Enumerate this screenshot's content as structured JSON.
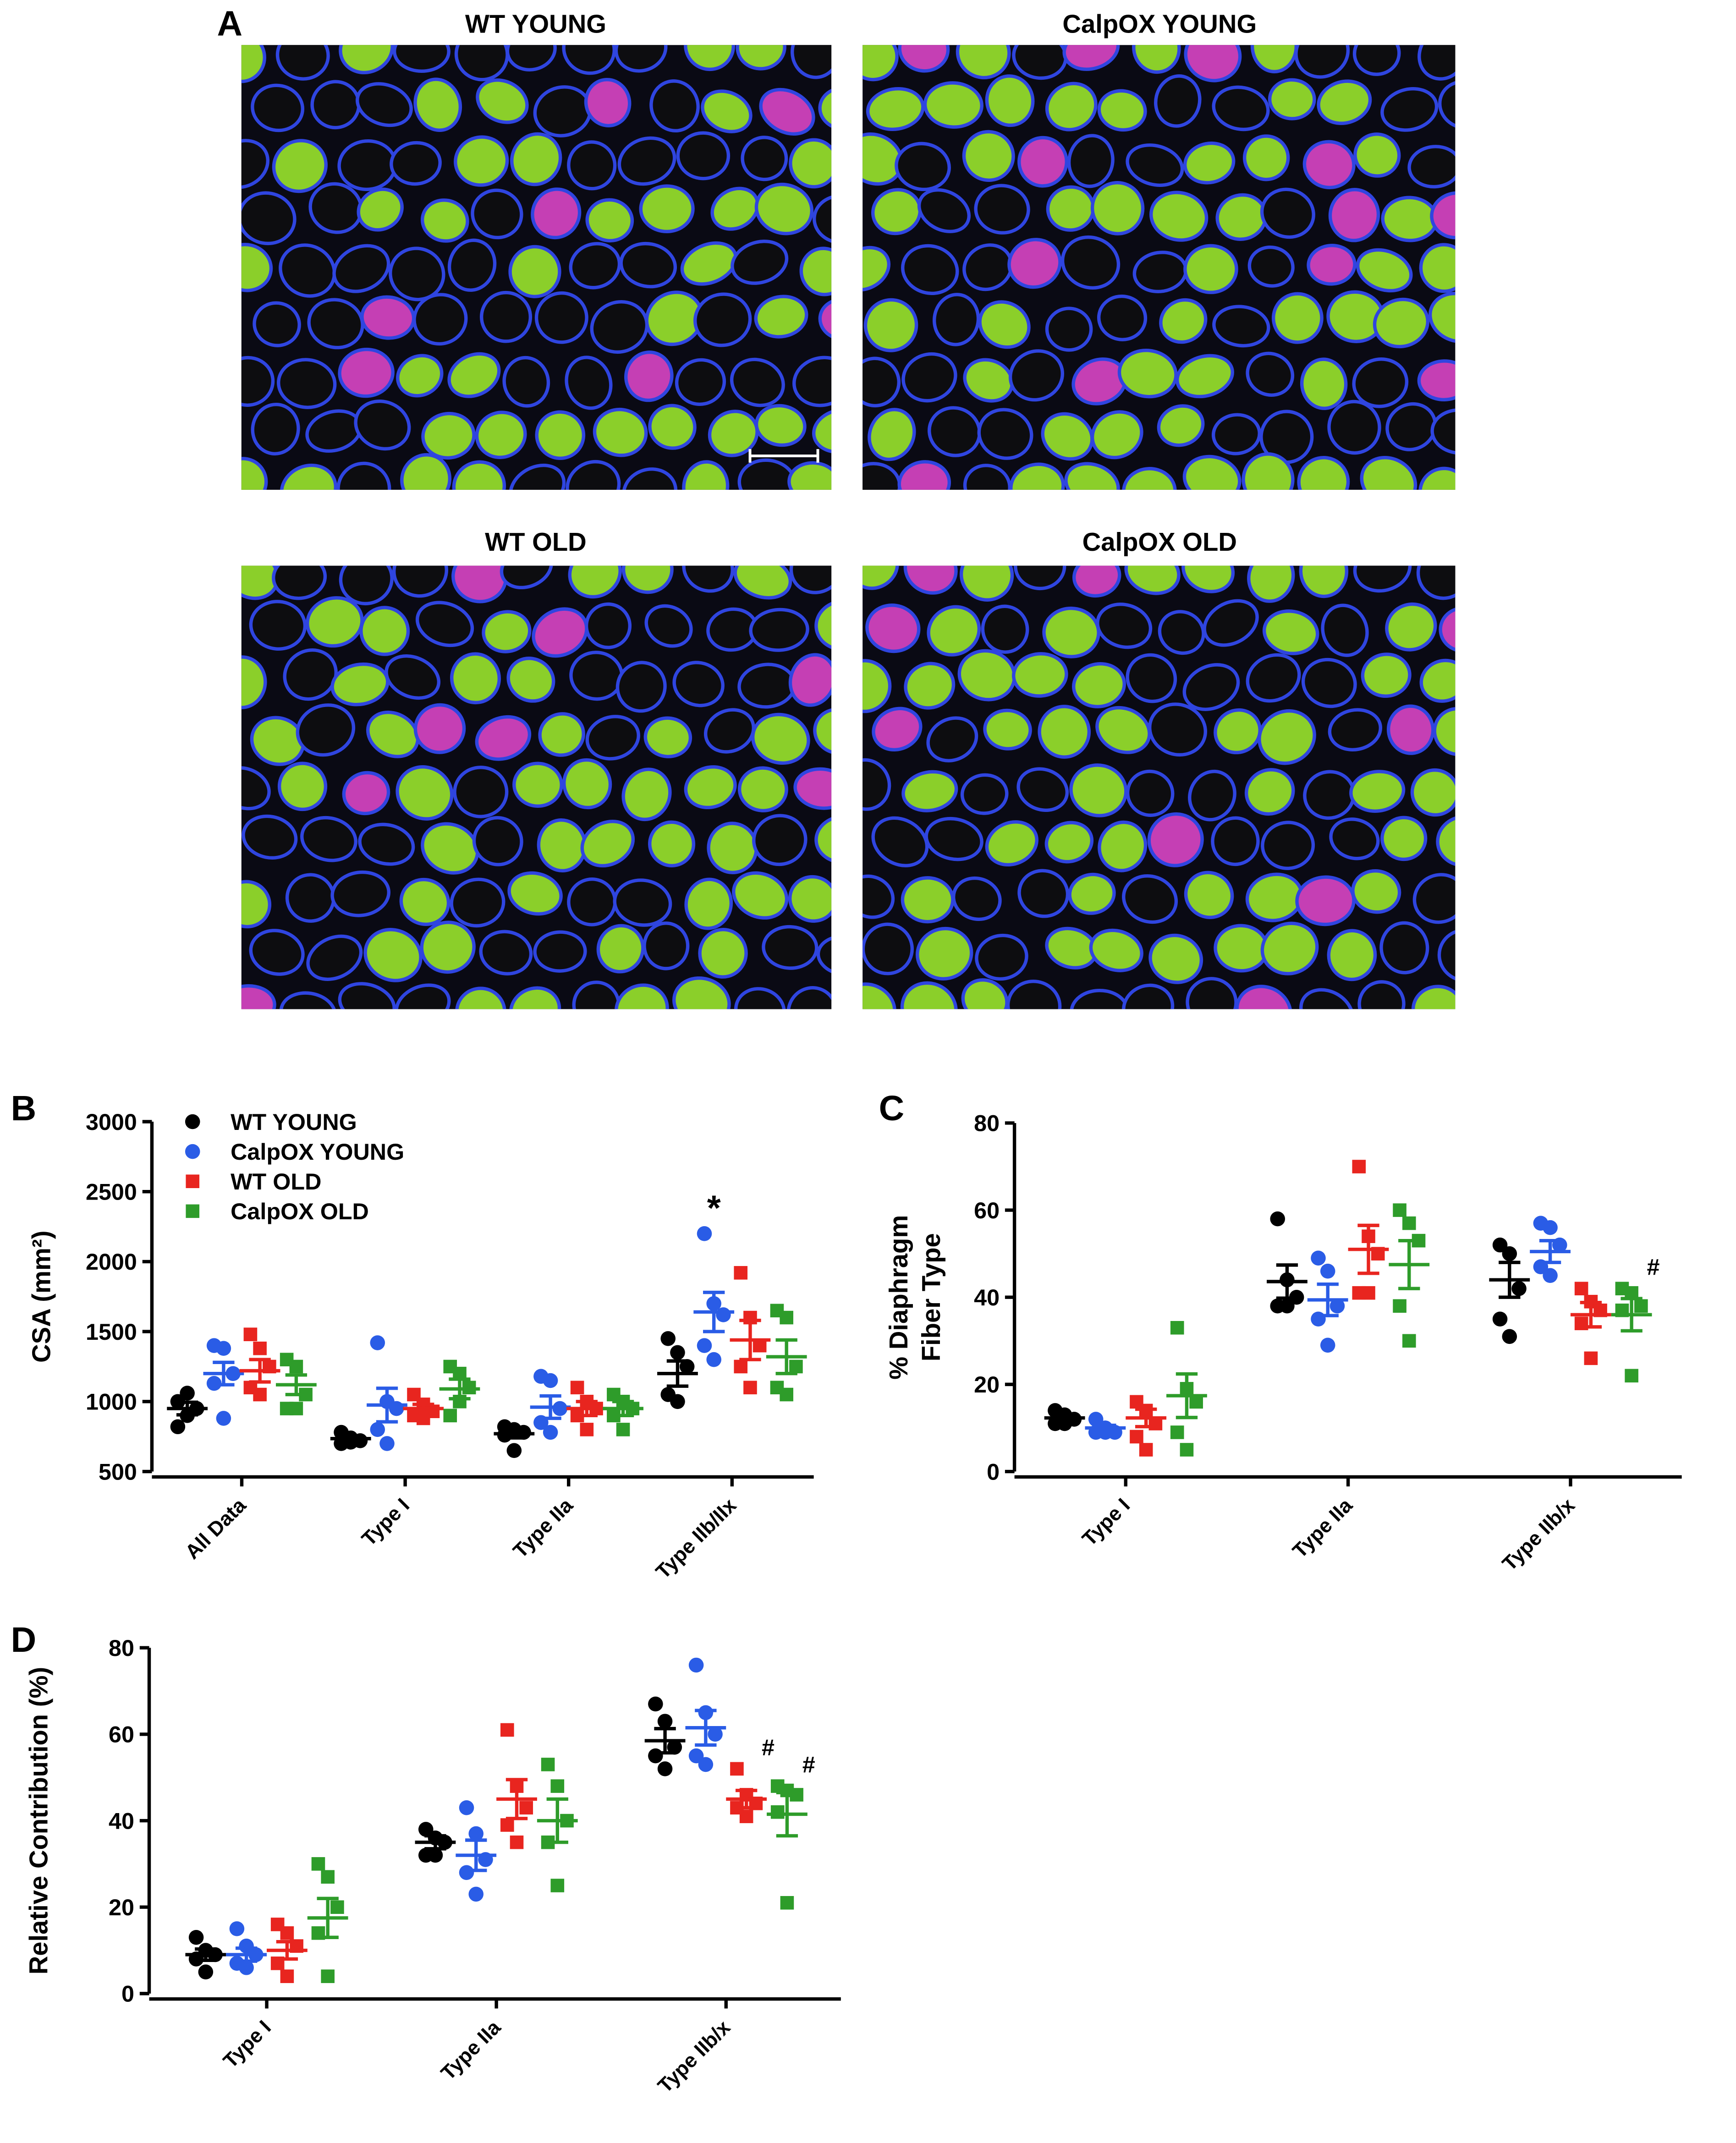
{
  "micrographs": {
    "panel": "A",
    "titles": [
      "WT YOUNG",
      "CalpOX YOUNG",
      "WT OLD",
      "CalpOX OLD"
    ]
  },
  "chart_data": [
    {
      "type": "dot",
      "panel": "B",
      "y_label": [
        "CSA (mm²)"
      ],
      "legend": true,
      "categories": [
        "All Data",
        "Type I",
        "Type IIa",
        "Type IIb/IIx"
      ],
      "ylim": [
        500,
        3000
      ],
      "yticks": [
        500,
        1000,
        1500,
        2000,
        2500,
        3000
      ],
      "series": [
        {
          "name": "WT YOUNG",
          "color": "#000000",
          "marker": "circle",
          "values": [
            [
              1000,
              900,
              950,
              820,
              1060
            ],
            [
              780,
              740,
              720,
              700,
              710
            ],
            [
              820,
              800,
              780,
              760,
              650
            ],
            [
              1450,
              1350,
              1250,
              1050,
              1000
            ]
          ],
          "means": [
            950,
            735,
            770,
            1200
          ],
          "sems": [
            45,
            15,
            30,
            90
          ]
        },
        {
          "name": "CalpOX YOUNG",
          "color": "#2a5ce6",
          "marker": "circle",
          "values": [
            [
              1400,
              1380,
              1200,
              1130,
              880
            ],
            [
              1420,
              1000,
              950,
              800,
              700
            ],
            [
              1180,
              1150,
              950,
              850,
              780
            ],
            [
              2200,
              1700,
              1620,
              1400,
              1300
            ]
          ],
          "means": [
            1200,
            975,
            960,
            1640
          ],
          "sems": [
            80,
            120,
            80,
            140
          ],
          "annotations": [
            null,
            null,
            null,
            "*"
          ]
        },
        {
          "name": "WT OLD",
          "color": "#e8251f",
          "marker": "square",
          "values": [
            [
              1480,
              1380,
              1250,
              1100,
              1050
            ],
            [
              1050,
              980,
              930,
              900,
              880
            ],
            [
              1100,
              1000,
              950,
              900,
              800
            ],
            [
              1920,
              1600,
              1400,
              1250,
              1100
            ]
          ],
          "means": [
            1220,
            950,
            950,
            1440
          ],
          "sems": [
            80,
            30,
            50,
            140
          ]
        },
        {
          "name": "CalpOX OLD",
          "color": "#2e9c2a",
          "marker": "square",
          "values": [
            [
              1300,
              1250,
              1050,
              950,
              950
            ],
            [
              1250,
              1200,
              1100,
              900,
              1000
            ],
            [
              1050,
              1000,
              950,
              900,
              800
            ],
            [
              1650,
              1600,
              1250,
              1100,
              1050
            ]
          ],
          "means": [
            1120,
            1090,
            950,
            1320
          ],
          "sems": [
            70,
            70,
            50,
            120
          ]
        }
      ]
    },
    {
      "type": "dot",
      "panel": "C",
      "y_label": [
        "%  Diaphragm",
        "Fiber Type"
      ],
      "legend": false,
      "categories": [
        "Type I",
        "Type IIa",
        "Type IIb/x"
      ],
      "ylim": [
        0,
        80
      ],
      "yticks": [
        0,
        20,
        40,
        60,
        80
      ],
      "series": [
        {
          "color": "#000000",
          "marker": "circle",
          "values": [
            [
              14,
              13,
              12,
              11,
              11
            ],
            [
              58,
              44,
              40,
              38,
              38
            ],
            [
              52,
              50,
              42,
              35,
              31
            ]
          ],
          "means": [
            12.3,
            43.6,
            44
          ],
          "sems": [
            0.7,
            3.8,
            4
          ]
        },
        {
          "color": "#2a5ce6",
          "marker": "circle",
          "values": [
            [
              12,
              10,
              9,
              9,
              9
            ],
            [
              49,
              46,
              38,
              35,
              29
            ],
            [
              57,
              56,
              52,
              47,
              45
            ]
          ],
          "means": [
            10,
            39.4,
            50.5
          ],
          "sems": [
            0.6,
            3.6,
            2.5
          ]
        },
        {
          "color": "#e8251f",
          "marker": "square",
          "values": [
            [
              16,
              14,
              11,
              8,
              5
            ],
            [
              70,
              54,
              50,
              41,
              41
            ],
            [
              42,
              39,
              37,
              34,
              26
            ]
          ],
          "means": [
            12.3,
            51,
            36
          ],
          "sems": [
            2,
            5.5,
            2.8
          ]
        },
        {
          "color": "#2e9c2a",
          "marker": "square",
          "values": [
            [
              33,
              19,
              16,
              9,
              5
            ],
            [
              60,
              57,
              53,
              38,
              30
            ],
            [
              42,
              41,
              38,
              37,
              22
            ]
          ],
          "means": [
            17.4,
            47.5,
            36
          ],
          "sems": [
            5,
            5.5,
            3.7
          ],
          "annotations": [
            null,
            null,
            "#"
          ]
        }
      ]
    },
    {
      "type": "dot",
      "panel": "D",
      "y_label": [
        "Relative Contribution (%)"
      ],
      "legend": false,
      "categories": [
        "Type I",
        "Type IIa",
        "Type IIb/x"
      ],
      "ylim": [
        0,
        80
      ],
      "yticks": [
        0,
        20,
        40,
        60,
        80
      ],
      "series": [
        {
          "color": "#000000",
          "marker": "circle",
          "values": [
            [
              13,
              10,
              9,
              8,
              5
            ],
            [
              38,
              36,
              35,
              32,
              32
            ],
            [
              67,
              63,
              57,
              55,
              52
            ]
          ],
          "means": [
            9,
            35,
            58.5
          ],
          "sems": [
            1.3,
            1.5,
            2.8
          ]
        },
        {
          "color": "#2a5ce6",
          "marker": "circle",
          "values": [
            [
              15,
              11,
              9,
              7,
              6
            ],
            [
              43,
              37,
              31,
              28,
              23
            ],
            [
              76,
              65,
              60,
              55,
              53
            ]
          ],
          "means": [
            9,
            32,
            61.5
          ],
          "sems": [
            1.5,
            3.5,
            4
          ]
        },
        {
          "color": "#e8251f",
          "marker": "square",
          "values": [
            [
              16,
              14,
              11,
              7,
              4
            ],
            [
              61,
              48,
              43,
              39,
              35
            ],
            [
              52,
              46,
              44,
              43,
              41
            ]
          ],
          "means": [
            10,
            45,
            45
          ],
          "sems": [
            2,
            4.5,
            2
          ],
          "annotations": [
            null,
            null,
            "#"
          ]
        },
        {
          "color": "#2e9c2a",
          "marker": "square",
          "values": [
            [
              30,
              27,
              20,
              14,
              4
            ],
            [
              53,
              48,
              40,
              35,
              25
            ],
            [
              48,
              47,
              46,
              42,
              21
            ]
          ],
          "means": [
            17.5,
            40,
            41.5
          ],
          "sems": [
            4.5,
            5,
            5
          ],
          "annotations": [
            null,
            null,
            "#"
          ]
        }
      ]
    }
  ]
}
